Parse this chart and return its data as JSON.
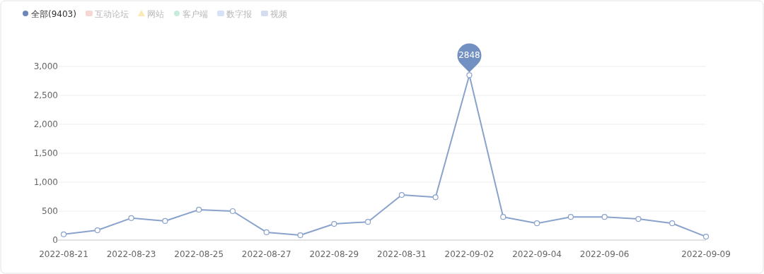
{
  "chart_data": {
    "type": "line",
    "categories": [
      "2022-08-21",
      null,
      "2022-08-23",
      null,
      "2022-08-25",
      null,
      "2022-08-27",
      null,
      "2022-08-29",
      null,
      "2022-08-31",
      null,
      "2022-09-02",
      null,
      "2022-09-04",
      null,
      "2022-09-06",
      null,
      null,
      "2022-09-09"
    ],
    "series": [
      {
        "name": "全部(9403)",
        "color": "#8aa3cc",
        "marker": "circle",
        "values": [
          100,
          170,
          380,
          330,
          525,
          500,
          135,
          85,
          280,
          315,
          780,
          740,
          2848,
          400,
          290,
          400,
          400,
          365,
          290,
          60
        ],
        "value_labels": [
          null,
          null,
          null,
          null,
          null,
          null,
          null,
          null,
          null,
          null,
          null,
          null,
          "2848",
          null,
          null,
          null,
          null,
          null,
          null,
          null
        ]
      },
      {
        "name": "互动论坛",
        "color": "#f8d6d2",
        "marker": "square",
        "values": [
          null,
          null,
          null,
          null,
          null,
          null,
          null,
          null,
          null,
          null,
          null,
          null,
          null,
          null,
          null,
          null,
          null,
          null,
          null,
          null
        ]
      },
      {
        "name": "网站",
        "color": "#fbe8b4",
        "marker": "triangle",
        "values": [
          null,
          null,
          null,
          null,
          null,
          null,
          null,
          null,
          null,
          null,
          null,
          null,
          null,
          null,
          null,
          null,
          null,
          null,
          null,
          null
        ]
      },
      {
        "name": "客户端",
        "color": "#c6ecdc",
        "marker": "circle",
        "values": [
          null,
          null,
          null,
          null,
          null,
          null,
          null,
          null,
          null,
          null,
          null,
          null,
          null,
          null,
          null,
          null,
          null,
          null,
          null,
          null
        ]
      },
      {
        "name": "数字报",
        "color": "#d6e2f8",
        "marker": "square",
        "values": [
          null,
          null,
          null,
          null,
          null,
          null,
          null,
          null,
          null,
          null,
          null,
          null,
          null,
          null,
          null,
          null,
          null,
          null,
          null,
          null
        ]
      },
      {
        "name": "视频",
        "color": "#d4dcf2",
        "marker": "square",
        "values": [
          null,
          null,
          null,
          null,
          null,
          null,
          null,
          null,
          null,
          null,
          null,
          null,
          null,
          null,
          null,
          null,
          null,
          null,
          null,
          null
        ]
      }
    ],
    "ylim": [
      0,
      3000
    ],
    "yticks": [
      {
        "value": 0,
        "label": "0"
      },
      {
        "value": 500,
        "label": "500"
      },
      {
        "value": 1000,
        "label": "1,000"
      },
      {
        "value": 1500,
        "label": "1,500"
      },
      {
        "value": 2000,
        "label": "2,000"
      },
      {
        "value": 2500,
        "label": "2,500"
      },
      {
        "value": 3000,
        "label": "3,000"
      }
    ],
    "grid": "y",
    "legend": "top left"
  }
}
